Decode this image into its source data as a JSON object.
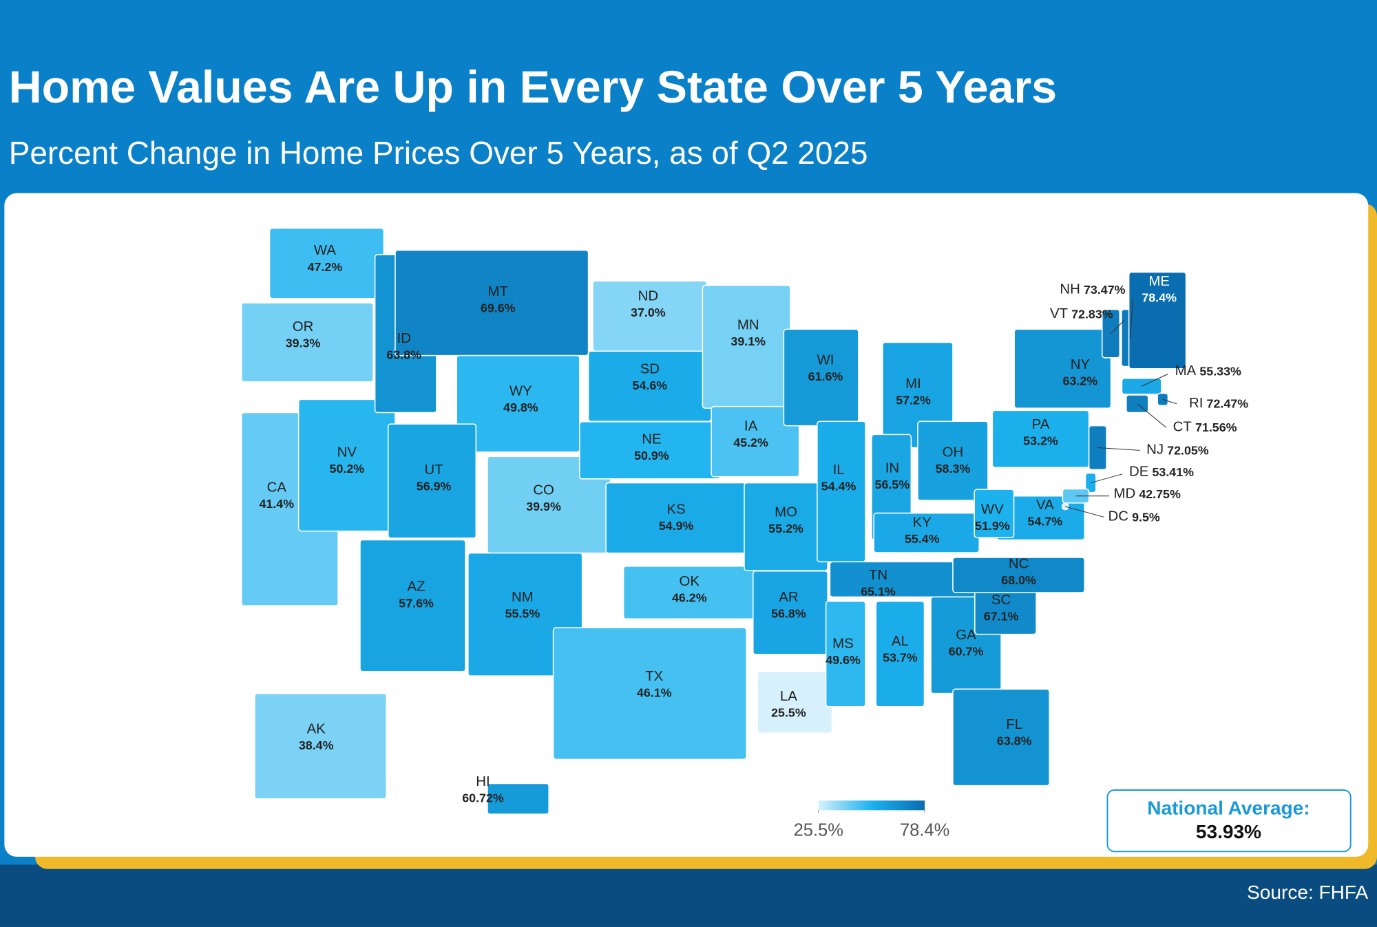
{
  "chart_data": {
    "type": "choropleth",
    "title": "Home Values Are Up in Every State Over 5 Years",
    "subtitle": "Percent Change in Home Prices Over 5 Years, as of Q2 2025",
    "categories": [
      "WA",
      "OR",
      "CA",
      "NV",
      "ID",
      "MT",
      "WY",
      "UT",
      "AZ",
      "CO",
      "NM",
      "ND",
      "SD",
      "NE",
      "KS",
      "OK",
      "TX",
      "MN",
      "IA",
      "MO",
      "AR",
      "LA",
      "WI",
      "IL",
      "MI",
      "IN",
      "OH",
      "KY",
      "TN",
      "MS",
      "AL",
      "GA",
      "FL",
      "SC",
      "NC",
      "VA",
      "WV",
      "PA",
      "NY",
      "VT",
      "NH",
      "ME",
      "MA",
      "RI",
      "CT",
      "NJ",
      "DE",
      "MD",
      "DC",
      "AK",
      "HI"
    ],
    "values": [
      47.2,
      39.3,
      41.4,
      50.2,
      63.8,
      69.6,
      49.8,
      56.9,
      57.6,
      39.9,
      55.5,
      37.0,
      54.6,
      50.9,
      54.9,
      46.2,
      46.1,
      39.1,
      45.2,
      55.2,
      56.8,
      25.5,
      61.6,
      54.4,
      57.2,
      56.5,
      58.3,
      55.4,
      65.1,
      49.6,
      53.7,
      60.7,
      63.8,
      67.1,
      68.0,
      54.7,
      51.9,
      53.2,
      63.2,
      72.83,
      73.47,
      78.4,
      55.33,
      72.47,
      71.56,
      72.05,
      53.41,
      42.75,
      9.5,
      38.4,
      60.72
    ],
    "value_labels": [
      "47.2%",
      "39.3%",
      "41.4%",
      "50.2%",
      "63.8%",
      "69.6%",
      "49.8%",
      "56.9%",
      "57.6%",
      "39.9%",
      "55.5%",
      "37.0%",
      "54.6%",
      "50.9%",
      "54.9%",
      "46.2%",
      "46.1%",
      "39.1%",
      "45.2%",
      "55.2%",
      "56.8%",
      "25.5%",
      "61.6%",
      "54.4%",
      "57.2%",
      "56.5%",
      "58.3%",
      "55.4%",
      "65.1%",
      "49.6%",
      "53.7%",
      "60.7%",
      "63.8%",
      "67.1%",
      "68.0%",
      "54.7%",
      "51.9%",
      "53.2%",
      "63.2%",
      "72.83%",
      "73.47%",
      "78.4%",
      "55.33%",
      "72.47%",
      "71.56%",
      "72.05%",
      "53.41%",
      "42.75%",
      "9.5%",
      "38.4%",
      "60.72%"
    ],
    "color_scale": [
      "#d6f1fc",
      "#1cb2ee",
      "#0a6db0"
    ],
    "colorbar_lim": [
      25.5,
      78.4
    ],
    "colorbar_ticks": [
      {
        "value": 25.5,
        "label": "25.5%"
      },
      {
        "value": 78.4,
        "label": "78.4%"
      }
    ],
    "national_average": {
      "label": "National Average:",
      "value": 53.93,
      "value_label": "53.93%"
    },
    "source": "Source: FHFA"
  }
}
